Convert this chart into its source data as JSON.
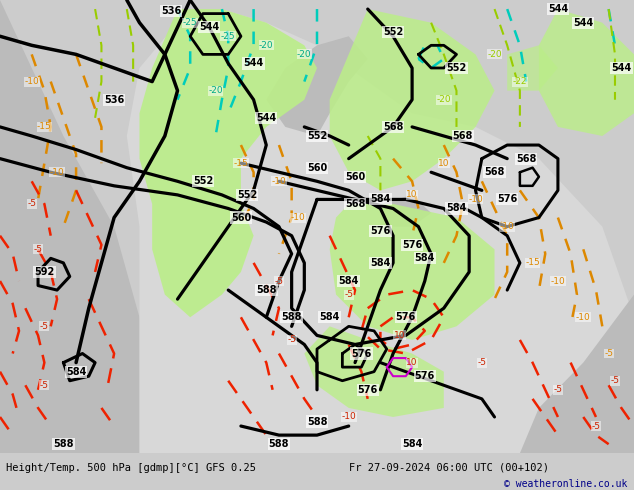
{
  "title_left": "Height/Temp. 500 hPa [gdmp][°C] GFS 0.25",
  "title_right": "Fr 27-09-2024 06:00 UTC (00+102)",
  "copyright": "© weatheronline.co.uk",
  "bg_color": "#c8c8c8",
  "map_bg": "#c8c8c8",
  "green_fill": "#aaee88",
  "figsize": [
    6.34,
    4.9
  ],
  "dpi": 100,
  "land_color": "#d8d8d8",
  "ocean_color": "#c0c0c0"
}
